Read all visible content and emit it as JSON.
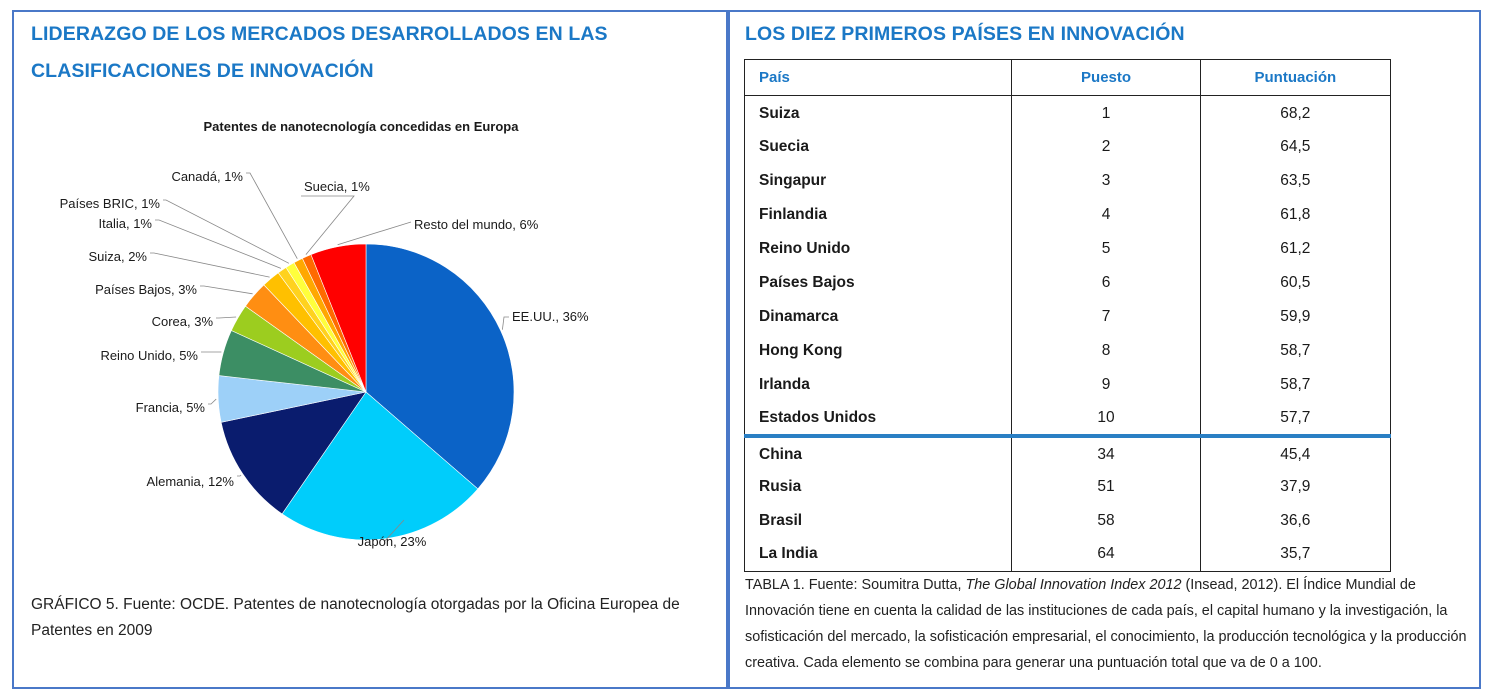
{
  "left_panel": {
    "title": "LIDERAZGO DE LOS MERCADOS DESARROLLADOS EN LAS CLASIFICACIONES DE INNOVACIÓN",
    "caption": "GRÁFICO 5. Fuente: OCDE. Patentes de nanotecnología otorgadas por la Oficina Europea de Patentes en 2009"
  },
  "chart_data": {
    "type": "pie",
    "title": "Patentes de nanotecnología concedidas en Europa",
    "slices": [
      {
        "label": "EE.UU., 36%",
        "name": "EE.UU.",
        "value": 36,
        "color": "#0b63c7"
      },
      {
        "label": "Japón, 23%",
        "name": "Japón",
        "value": 23,
        "color": "#00cdfb"
      },
      {
        "label": "Alemania, 12%",
        "name": "Alemania",
        "value": 12,
        "color": "#0a1c6e"
      },
      {
        "label": "Francia, 5%",
        "name": "Francia",
        "value": 5,
        "color": "#9dd0f8"
      },
      {
        "label": "Reino Unido, 5%",
        "name": "Reino Unido",
        "value": 5,
        "color": "#3c8e64"
      },
      {
        "label": "Corea, 3%",
        "name": "Corea",
        "value": 3,
        "color": "#9ccd1f"
      },
      {
        "label": "Países Bajos, 3%",
        "name": "Países Bajos",
        "value": 3,
        "color": "#ff8e12"
      },
      {
        "label": "Suiza, 2%",
        "name": "Suiza",
        "value": 2,
        "color": "#ffc000"
      },
      {
        "label": "Italia, 1%",
        "name": "Italia",
        "value": 1,
        "color": "#ffd21e"
      },
      {
        "label": "Países BRIC, 1%",
        "name": "Países BRIC",
        "value": 1,
        "color": "#ffff3c"
      },
      {
        "label": "Canadá, 1%",
        "name": "Canadá",
        "value": 1,
        "color": "#ffa800"
      },
      {
        "label": "Suecia, 1%",
        "name": "Suecia",
        "value": 1,
        "color": "#ff6a00"
      },
      {
        "label": "Resto del mundo, 6%",
        "name": "Resto del mundo",
        "value": 6,
        "color": "#ff0000"
      }
    ]
  },
  "right_panel": {
    "title": "LOS DIEZ PRIMEROS PAÍSES EN INNOVACIÓN",
    "table": {
      "headers": [
        "País",
        "Puesto",
        "Puntuación"
      ],
      "top_rows": [
        [
          "Suiza",
          "1",
          "68,2"
        ],
        [
          "Suecia",
          "2",
          "64,5"
        ],
        [
          "Singapur",
          "3",
          "63,5"
        ],
        [
          "Finlandia",
          "4",
          "61,8"
        ],
        [
          "Reino Unido",
          "5",
          "61,2"
        ],
        [
          "Países Bajos",
          "6",
          "60,5"
        ],
        [
          "Dinamarca",
          "7",
          "59,9"
        ],
        [
          "Hong Kong",
          "8",
          "58,7"
        ],
        [
          "Irlanda",
          "9",
          "58,7"
        ],
        [
          "Estados Unidos",
          "10",
          "57,7"
        ]
      ],
      "extra_rows": [
        [
          "China",
          "34",
          "45,4"
        ],
        [
          "Rusia",
          "51",
          "37,9"
        ],
        [
          "Brasil",
          "58",
          "36,6"
        ],
        [
          "La India",
          "64",
          "35,7"
        ]
      ]
    },
    "caption": {
      "prefix": "TABLA 1. Fuente: Soumitra Dutta, ",
      "italic": "The Global Innovation Index 2012",
      "suffix": " (Insead, 2012). El Índice Mundial de Innovación tiene en cuenta la calidad de las instituciones de cada país, el capital humano y la investigación, la sofisticación del mercado, la sofisticación empresarial, el conocimiento, la producción tecnológica y la producción creativa. Cada elemento se combina para generar una puntuación total que va de 0 a 100."
    }
  }
}
